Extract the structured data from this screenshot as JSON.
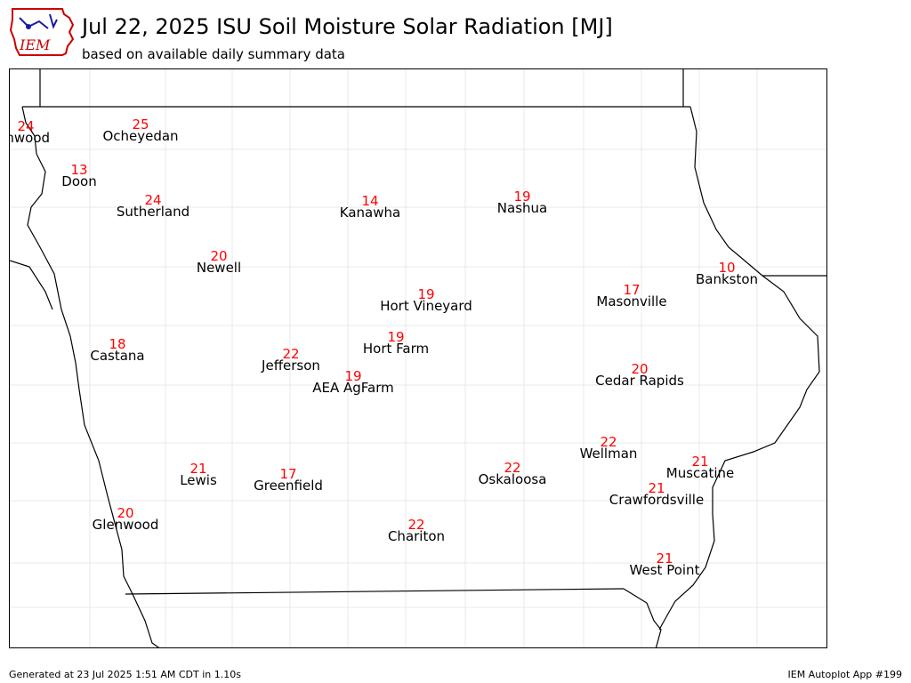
{
  "header": {
    "title": "Jul 22, 2025 ISU Soil Moisture Solar Radiation [MJ]",
    "subtitle": "based on available daily summary data",
    "logo_text": "IEM"
  },
  "colors": {
    "value": "#ff0000",
    "label": "#000000",
    "county_border": "#e6e6e6",
    "state_border": "#000000",
    "logo": "#cc0000",
    "logo_accent": "#1a1aa6"
  },
  "stations": [
    {
      "id": "inwood",
      "name": "Inwood",
      "value": "24"
    },
    {
      "id": "ocheyedan",
      "name": "Ocheyedan",
      "value": "25"
    },
    {
      "id": "doon",
      "name": "Doon",
      "value": "13"
    },
    {
      "id": "sutherland",
      "name": "Sutherland",
      "value": "24"
    },
    {
      "id": "kanawha",
      "name": "Kanawha",
      "value": "14"
    },
    {
      "id": "nashua",
      "name": "Nashua",
      "value": "19"
    },
    {
      "id": "newell",
      "name": "Newell",
      "value": "20"
    },
    {
      "id": "bankston",
      "name": "Bankston",
      "value": "10"
    },
    {
      "id": "hort-vineyard",
      "name": "Hort Vineyard",
      "value": "19"
    },
    {
      "id": "masonville",
      "name": "Masonville",
      "value": "17"
    },
    {
      "id": "castana",
      "name": "Castana",
      "value": "18"
    },
    {
      "id": "hort-farm",
      "name": "Hort Farm",
      "value": "19"
    },
    {
      "id": "jefferson",
      "name": "Jefferson",
      "value": "22"
    },
    {
      "id": "aea-agfarm",
      "name": "AEA AgFarm",
      "value": "19"
    },
    {
      "id": "cedar-rapids",
      "name": "Cedar Rapids",
      "value": "20"
    },
    {
      "id": "wellman",
      "name": "Wellman",
      "value": "22"
    },
    {
      "id": "lewis",
      "name": "Lewis",
      "value": "21"
    },
    {
      "id": "greenfield",
      "name": "Greenfield",
      "value": "17"
    },
    {
      "id": "oskaloosa",
      "name": "Oskaloosa",
      "value": "22"
    },
    {
      "id": "muscatine",
      "name": "Muscatine",
      "value": "21"
    },
    {
      "id": "crawfordsville",
      "name": "Crawfordsville",
      "value": "21"
    },
    {
      "id": "glenwood",
      "name": "Glenwood",
      "value": "20"
    },
    {
      "id": "chariton",
      "name": "Chariton",
      "value": "22"
    },
    {
      "id": "west-point",
      "name": "West Point",
      "value": "21"
    }
  ],
  "footer": {
    "generated": "Generated at 23 Jul 2025 1:51 AM CDT in 1.10s",
    "app": "IEM Autoplot App #199"
  }
}
